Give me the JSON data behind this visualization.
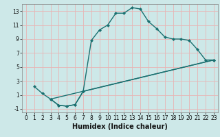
{
  "xlabel": "Humidex (Indice chaleur)",
  "background_color": "#cde8e8",
  "grid_color": "#e8b4b4",
  "line_color": "#1a7070",
  "line1_x": [
    1,
    2,
    3,
    4,
    5,
    6,
    7,
    8,
    9,
    10,
    11,
    12,
    13,
    14,
    15,
    16,
    17,
    18,
    19,
    20,
    21,
    22,
    23
  ],
  "line1_y": [
    2.2,
    1.2,
    0.4,
    -0.5,
    -0.6,
    -0.4,
    1.5,
    8.8,
    10.3,
    11.0,
    12.7,
    12.7,
    13.5,
    13.3,
    11.5,
    10.5,
    9.3,
    9.0,
    9.0,
    8.8,
    7.5,
    6.0,
    6.0
  ],
  "line2_x": [
    3,
    4,
    5,
    6,
    7,
    23
  ],
  "line2_y": [
    0.4,
    -0.5,
    -0.6,
    -0.4,
    1.5,
    6.0
  ],
  "line3_x": [
    3,
    23
  ],
  "line3_y": [
    0.4,
    6.0
  ],
  "xlim": [
    -0.5,
    23.5
  ],
  "ylim": [
    -1.5,
    14.0
  ],
  "yticks": [
    -1,
    1,
    3,
    5,
    7,
    9,
    11,
    13
  ],
  "xticks": [
    0,
    1,
    2,
    3,
    4,
    5,
    6,
    7,
    8,
    9,
    10,
    11,
    12,
    13,
    14,
    15,
    16,
    17,
    18,
    19,
    20,
    21,
    22,
    23
  ],
  "xlabel_fontsize": 7,
  "tick_fontsize": 5.5,
  "linewidth": 1.0,
  "markersize": 2.5
}
